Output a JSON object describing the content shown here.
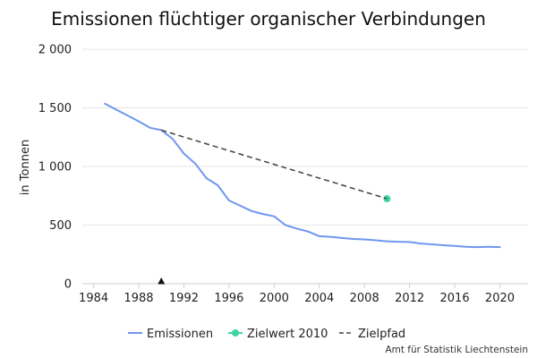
{
  "chart_data": {
    "type": "line",
    "title": "Emissionen flüchtiger organischer Verbindungen",
    "ylabel": "in Tonnen",
    "xlabel": "",
    "xlim": [
      1983,
      2022.5
    ],
    "ylim": [
      0,
      2000
    ],
    "x_ticks": [
      1984,
      1988,
      1992,
      1996,
      2000,
      2004,
      2008,
      2012,
      2016,
      2020
    ],
    "y_ticks": [
      0,
      500,
      1000,
      1500,
      2000
    ],
    "y_tick_labels": [
      "0",
      "500",
      "1 000",
      "1 500",
      "2 000"
    ],
    "grid": "horizontal",
    "legend_position": "bottom",
    "series": [
      {
        "name": "Emissionen",
        "kind": "line",
        "color": "#6f97f0",
        "x": [
          1985,
          1986,
          1987,
          1988,
          1989,
          1990,
          1991,
          1992,
          1993,
          1994,
          1995,
          1996,
          1997,
          1998,
          1999,
          2000,
          2001,
          2002,
          2003,
          2004,
          2005,
          2006,
          2007,
          2008,
          2009,
          2010,
          2011,
          2012,
          2013,
          2014,
          2015,
          2016,
          2017,
          2018,
          2019,
          2020
        ],
        "y": [
          1535,
          1485,
          1435,
          1385,
          1330,
          1310,
          1235,
          1110,
          1025,
          900,
          840,
          710,
          665,
          620,
          595,
          575,
          500,
          470,
          445,
          405,
          400,
          390,
          382,
          378,
          370,
          362,
          358,
          356,
          343,
          336,
          328,
          322,
          315,
          312,
          315,
          312
        ]
      },
      {
        "name": "Zielwert 2010",
        "kind": "marker",
        "color": "#3fd4a4",
        "x": [
          2010
        ],
        "y": [
          725
        ]
      },
      {
        "name": "Zielpfad",
        "kind": "dashed",
        "color": "#4a4a4a",
        "x": [
          1990,
          2010
        ],
        "y": [
          1310,
          725
        ]
      }
    ],
    "annotations": [
      {
        "kind": "triangle-marker",
        "x": 1990,
        "y": 0,
        "color": "#111111"
      }
    ]
  },
  "footer": {
    "source": "Amt für Statistik Liechtenstein"
  }
}
